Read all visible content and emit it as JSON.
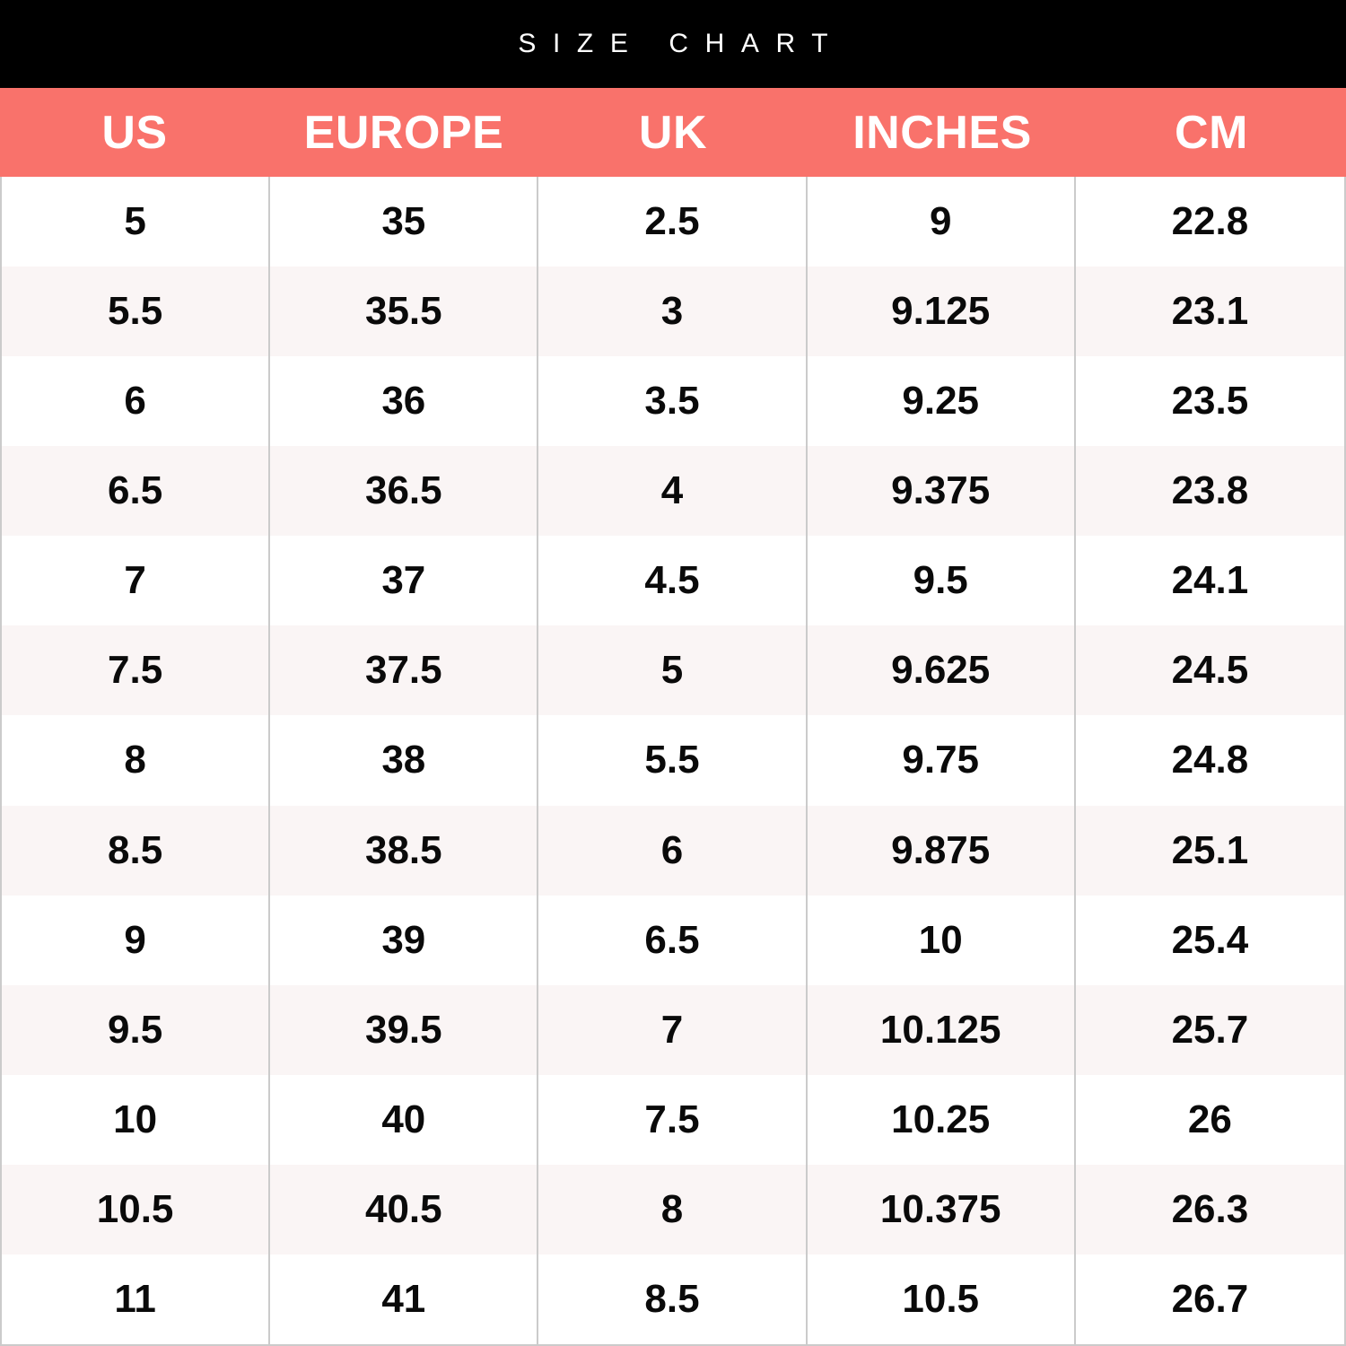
{
  "title": "SIZE CHART",
  "colors": {
    "title_bar_bg": "#000000",
    "title_text": "#ffffff",
    "header_bg": "#f9726b",
    "header_text": "#ffffff",
    "row_alt_bg": "#faf5f5",
    "row_bg": "#ffffff",
    "divider": "#cbcbcb",
    "cell_text": "#0a0a0a"
  },
  "chart_data": {
    "type": "table",
    "title": "SIZE CHART",
    "columns": [
      "US",
      "EUROPE",
      "UK",
      "INCHES",
      "CM"
    ],
    "rows": [
      [
        "5",
        "35",
        "2.5",
        "9",
        "22.8"
      ],
      [
        "5.5",
        "35.5",
        "3",
        "9.125",
        "23.1"
      ],
      [
        "6",
        "36",
        "3.5",
        "9.25",
        "23.5"
      ],
      [
        "6.5",
        "36.5",
        "4",
        "9.375",
        "23.8"
      ],
      [
        "7",
        "37",
        "4.5",
        "9.5",
        "24.1"
      ],
      [
        "7.5",
        "37.5",
        "5",
        "9.625",
        "24.5"
      ],
      [
        "8",
        "38",
        "5.5",
        "9.75",
        "24.8"
      ],
      [
        "8.5",
        "38.5",
        "6",
        "9.875",
        "25.1"
      ],
      [
        "9",
        "39",
        "6.5",
        "10",
        "25.4"
      ],
      [
        "9.5",
        "39.5",
        "7",
        "10.125",
        "25.7"
      ],
      [
        "10",
        "40",
        "7.5",
        "10.25",
        "26"
      ],
      [
        "10.5",
        "40.5",
        "8",
        "10.375",
        "26.3"
      ],
      [
        "11",
        "41",
        "8.5",
        "10.5",
        "26.7"
      ]
    ]
  }
}
